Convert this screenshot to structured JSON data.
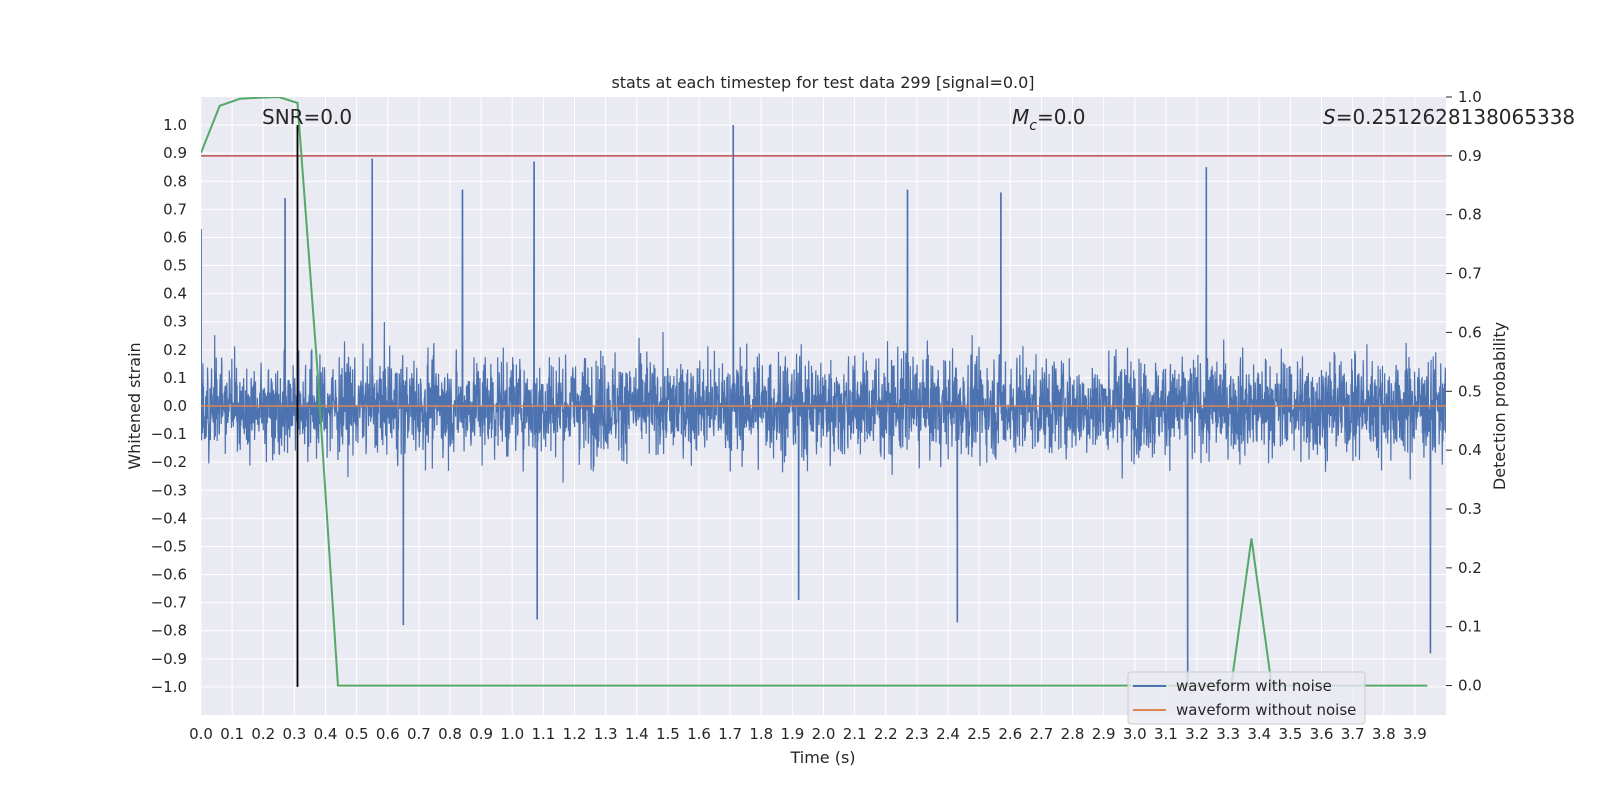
{
  "chart_data": {
    "type": "line",
    "title": "stats at each timestep for test data 299 [signal=0.0]",
    "xlabel": "Time (s)",
    "ylabel": "Whitened strain",
    "y2label": "Detection probability",
    "xlim": [
      0.0,
      4.0
    ],
    "ylim": [
      -1.1,
      1.1
    ],
    "y2lim": [
      -0.05,
      1.0
    ],
    "x_ticks": [
      "0.0",
      "0.1",
      "0.2",
      "0.3",
      "0.4",
      "0.5",
      "0.6",
      "0.7",
      "0.8",
      "0.9",
      "1.0",
      "1.1",
      "1.2",
      "1.3",
      "1.4",
      "1.5",
      "1.6",
      "1.7",
      "1.8",
      "1.9",
      "2.0",
      "2.1",
      "2.2",
      "2.3",
      "2.4",
      "2.5",
      "2.6",
      "2.7",
      "2.8",
      "2.9",
      "3.0",
      "3.1",
      "3.2",
      "3.3",
      "3.4",
      "3.5",
      "3.6",
      "3.7",
      "3.8",
      "3.9"
    ],
    "y_ticks": [
      "1.0",
      "0.9",
      "0.8",
      "0.7",
      "0.6",
      "0.5",
      "0.4",
      "0.3",
      "0.2",
      "0.1",
      "0.0",
      "−0.1",
      "−0.2",
      "−0.3",
      "−0.4",
      "−0.5",
      "−0.6",
      "−0.7",
      "−0.8",
      "−0.9",
      "−1.0"
    ],
    "y2_ticks": [
      "1.0",
      "0.9",
      "0.8",
      "0.7",
      "0.6",
      "0.5",
      "0.4",
      "0.3",
      "0.2",
      "0.1",
      "0.0"
    ],
    "grid": true,
    "annotations": {
      "snr": "SNR=0.0",
      "mc_symbol": "M",
      "mc_sub": "c",
      "mc_value": "=0.0",
      "s_symbol": "S",
      "s_value": "=0.2512628138065338"
    },
    "threshold": {
      "value": 0.9,
      "axis": "y2",
      "color": "#c44e52"
    },
    "marker_line": {
      "x": 0.31,
      "y_from": -1.0,
      "y_to": 1.0,
      "color": "#000000"
    },
    "series": [
      {
        "name": "waveform with noise",
        "color": "#4c72b0",
        "axis": "y",
        "noise_profile": {
          "typical_min": -0.4,
          "typical_max": 0.38,
          "samples": 4000
        },
        "peaks": [
          {
            "x": 0.0,
            "y": 0.63
          },
          {
            "x": 0.27,
            "y": 0.74
          },
          {
            "x": 0.55,
            "y": 0.88
          },
          {
            "x": 0.84,
            "y": 0.77
          },
          {
            "x": 1.07,
            "y": 0.87
          },
          {
            "x": 1.71,
            "y": 1.0
          },
          {
            "x": 2.27,
            "y": 0.77
          },
          {
            "x": 2.57,
            "y": 0.76
          },
          {
            "x": 3.23,
            "y": 0.85
          },
          {
            "x": 0.65,
            "y": -0.78
          },
          {
            "x": 1.08,
            "y": -0.76
          },
          {
            "x": 1.92,
            "y": -0.69
          },
          {
            "x": 2.43,
            "y": -0.77
          },
          {
            "x": 3.17,
            "y": -1.0
          },
          {
            "x": 3.95,
            "y": -0.88
          }
        ]
      },
      {
        "name": "waveform without noise",
        "color": "#dd8452",
        "axis": "y",
        "x": [
          0.0,
          4.0
        ],
        "y": [
          0.0,
          0.0
        ]
      },
      {
        "name": "detection probability",
        "color": "#55a868",
        "axis": "y2",
        "x": [
          0.0,
          0.06,
          0.125,
          0.19,
          0.25,
          0.31,
          0.375,
          0.44,
          3.31,
          3.375,
          3.44,
          3.94
        ],
        "y": [
          0.905,
          0.985,
          0.997,
          0.999,
          1.0,
          0.99,
          0.53,
          0.0,
          0.0,
          0.25,
          0.0,
          0.0
        ]
      }
    ],
    "legend": {
      "position": "lower-right",
      "entries": [
        "waveform with noise",
        "waveform without noise"
      ]
    }
  }
}
